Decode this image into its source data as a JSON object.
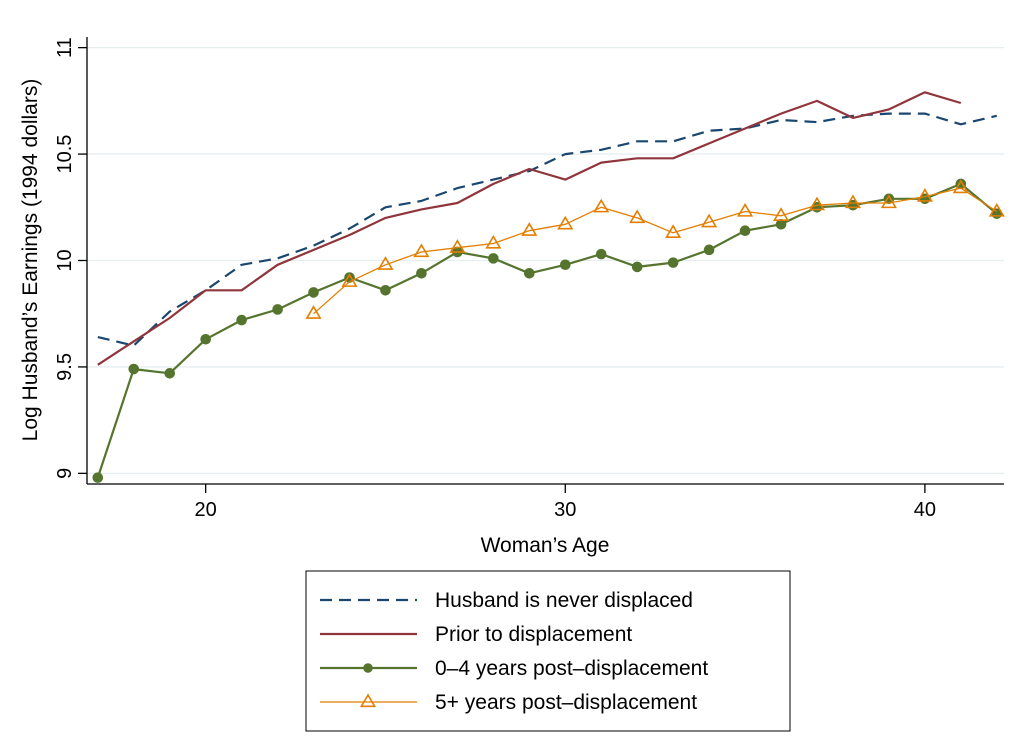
{
  "chart_data": {
    "type": "line",
    "xlabel": "Woman’s Age",
    "ylabel": "Log Husband’s Earnings (1994 dollars)",
    "xlim": [
      16.7,
      42.2
    ],
    "ylim": [
      8.95,
      11.05
    ],
    "xticks": [
      20,
      30,
      40
    ],
    "yticks": [
      9,
      9.5,
      10,
      10.5,
      11
    ],
    "ytick_labels": [
      "9",
      "9.5",
      "10",
      "10.5",
      "11"
    ],
    "grid": "horizontal",
    "legend_placement": "bottom-center",
    "series": [
      {
        "name": "Husband is never displaced",
        "color": "#1a476f",
        "style": "dashed",
        "marker": "none",
        "x": [
          17,
          18,
          19,
          20,
          21,
          22,
          23,
          24,
          25,
          26,
          27,
          28,
          29,
          30,
          31,
          32,
          33,
          34,
          35,
          36,
          37,
          38,
          39,
          40,
          41,
          42
        ],
        "y": [
          9.64,
          9.6,
          9.76,
          9.86,
          9.98,
          10.01,
          10.07,
          10.15,
          10.25,
          10.28,
          10.34,
          10.38,
          10.42,
          10.5,
          10.52,
          10.56,
          10.56,
          10.61,
          10.62,
          10.66,
          10.65,
          10.68,
          10.69,
          10.69,
          10.64,
          10.68
        ]
      },
      {
        "name": "Prior to displacement",
        "color": "#90353b",
        "style": "solid",
        "marker": "none",
        "x": [
          17,
          18,
          19,
          20,
          21,
          22,
          23,
          24,
          25,
          26,
          27,
          28,
          29,
          30,
          31,
          32,
          33,
          34,
          35,
          36,
          37,
          38,
          39,
          40,
          41
        ],
        "y": [
          9.51,
          9.62,
          9.73,
          9.86,
          9.86,
          9.98,
          10.05,
          10.12,
          10.2,
          10.24,
          10.27,
          10.36,
          10.43,
          10.38,
          10.46,
          10.48,
          10.48,
          10.55,
          10.62,
          10.69,
          10.75,
          10.67,
          10.71,
          10.79,
          10.74
        ]
      },
      {
        "name": "0–4 years post–displacement",
        "color": "#55752f",
        "style": "solid",
        "marker": "circle",
        "x": [
          17,
          18,
          19,
          20,
          21,
          22,
          23,
          24,
          25,
          26,
          27,
          28,
          29,
          30,
          31,
          32,
          33,
          34,
          35,
          36,
          37,
          38,
          39,
          40,
          41,
          42
        ],
        "y": [
          8.98,
          9.49,
          9.47,
          9.63,
          9.72,
          9.77,
          9.85,
          9.92,
          9.86,
          9.94,
          10.04,
          10.01,
          9.94,
          9.98,
          10.03,
          9.97,
          9.99,
          10.05,
          10.14,
          10.17,
          10.25,
          10.26,
          10.29,
          10.29,
          10.36,
          10.22
        ]
      },
      {
        "name": "5+ years post–displacement",
        "color": "#e37e00",
        "style": "solid",
        "marker": "triangle",
        "x": [
          23,
          24,
          25,
          26,
          27,
          28,
          29,
          30,
          31,
          32,
          33,
          34,
          35,
          36,
          37,
          38,
          39,
          40,
          41,
          42
        ],
        "y": [
          9.75,
          9.9,
          9.98,
          10.04,
          10.06,
          10.08,
          10.14,
          10.17,
          10.25,
          10.2,
          10.13,
          10.18,
          10.23,
          10.21,
          10.26,
          10.27,
          10.27,
          10.3,
          10.34,
          10.23
        ]
      }
    ]
  }
}
